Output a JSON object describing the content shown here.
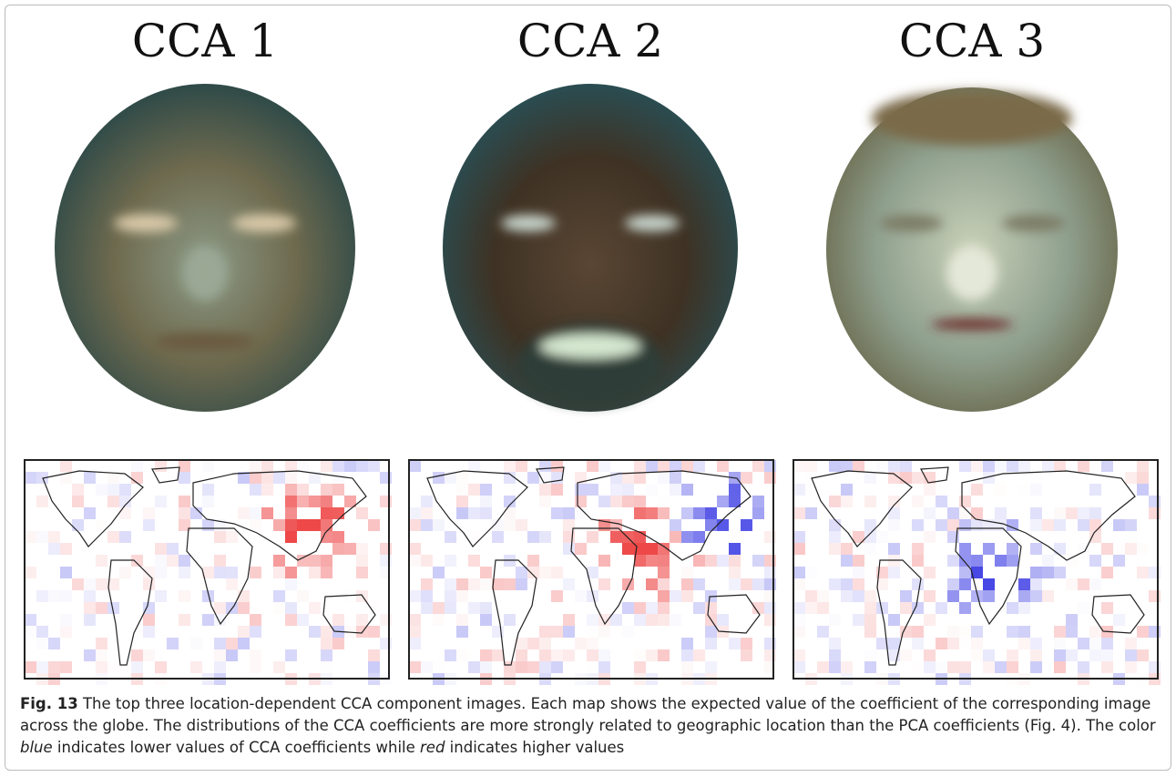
{
  "panels": [
    {
      "title": "CCA 1"
    },
    {
      "title": "CCA 2"
    },
    {
      "title": "CCA 3"
    }
  ],
  "caption": {
    "label": "Fig. 13",
    "parts": [
      " The top three location-dependent CCA component images. Each map shows the expected value of the coefficient of the corresponding image across the globe. The distributions of the CCA coefficients are more strongly related to geographic location than the PCA coefficients (Fig. 4). The color ",
      "blue",
      " indicates lower values of CCA coefficients while ",
      "red",
      " indicates higher values"
    ]
  }
}
